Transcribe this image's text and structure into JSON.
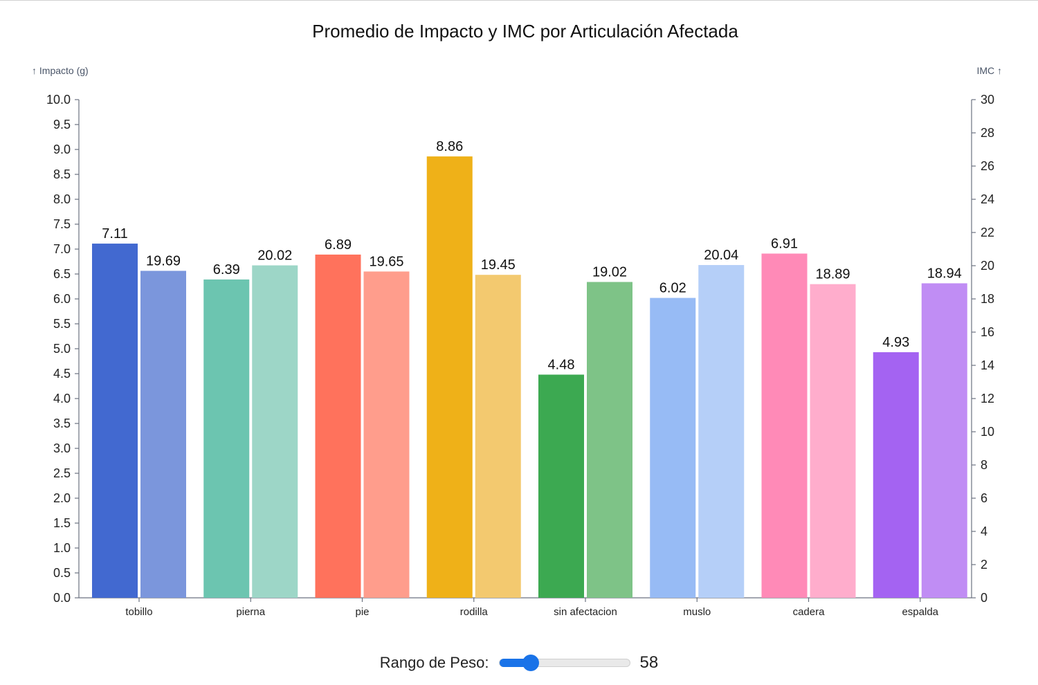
{
  "chart_data": {
    "type": "bar",
    "title": "Promedio de Impacto y IMC por Articulación Afectada",
    "y_left_label": "↑ Impacto (g)",
    "y_right_label": "IMC ↑",
    "y_left_range": [
      0,
      10
    ],
    "y_right_range": [
      0,
      30
    ],
    "y_left_ticks": [
      "0.0",
      "0.5",
      "1.0",
      "1.5",
      "2.0",
      "2.5",
      "3.0",
      "3.5",
      "4.0",
      "4.5",
      "5.0",
      "5.5",
      "6.0",
      "6.5",
      "7.0",
      "7.5",
      "8.0",
      "8.5",
      "9.0",
      "9.5",
      "10.0"
    ],
    "y_right_ticks": [
      "0",
      "2",
      "4",
      "6",
      "8",
      "10",
      "12",
      "14",
      "16",
      "18",
      "20",
      "22",
      "24",
      "26",
      "28",
      "30"
    ],
    "grid": false,
    "categories": [
      "tobillo",
      "pierna",
      "pie",
      "rodilla",
      "sin afectacion",
      "muslo",
      "cadera",
      "espalda"
    ],
    "series": [
      {
        "axis": "left",
        "values": [
          7.11,
          6.39,
          6.89,
          8.86,
          4.48,
          6.02,
          6.91,
          4.93
        ],
        "labels": [
          "7.11",
          "6.39",
          "6.89",
          "8.86",
          "4.48",
          "6.02",
          "6.91",
          "4.93"
        ],
        "colors": [
          "#4269d0",
          "#6cc5b0",
          "#ff725c",
          "#efb118",
          "#3ca951",
          "#97bbf5",
          "#ff8ab7",
          "#a463f2"
        ]
      },
      {
        "axis": "right",
        "values": [
          19.69,
          20.02,
          19.65,
          19.45,
          19.02,
          20.04,
          18.89,
          18.94
        ],
        "labels": [
          "19.69",
          "20.02",
          "19.65",
          "19.45",
          "19.02",
          "20.04",
          "18.89",
          "18.94"
        ],
        "colors": [
          "#7b96dc",
          "#9dd6c7",
          "#ff9d8c",
          "#f3c96f",
          "#7ec387",
          "#b5cff8",
          "#ffadcc",
          "#c08df4"
        ]
      }
    ]
  },
  "controls": {
    "slider_label": "Rango de Peso:",
    "slider_value": "58",
    "slider_fraction": 0.24
  }
}
